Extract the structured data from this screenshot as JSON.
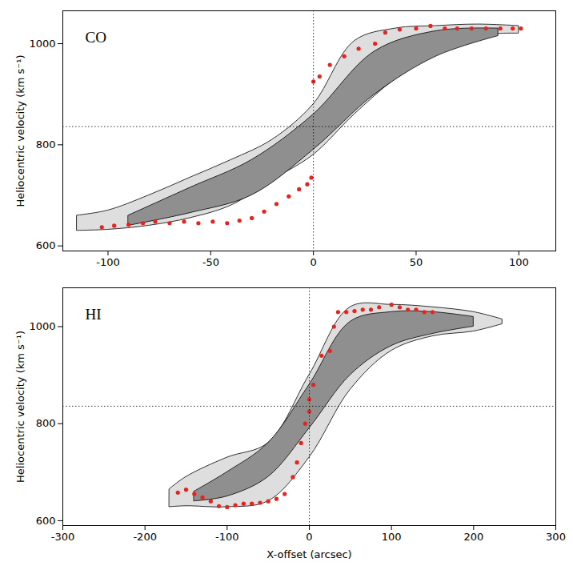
{
  "chart_data": [
    {
      "type": "scatter",
      "annotation": "CO",
      "ylabel": "Heliocentric velocity (km s⁻¹)",
      "xlim": [
        -122,
        118
      ],
      "xticks": [
        -100,
        -50,
        0,
        50,
        100
      ],
      "ylim": [
        590,
        1065
      ],
      "yticks": [
        600,
        800,
        1000
      ],
      "vlines": [
        0
      ],
      "hlines": [
        836
      ],
      "series": [
        {
          "type": "area",
          "color": "#dedede",
          "x": [
            -115,
            -100,
            -80,
            -60,
            -40,
            -20,
            0,
            20,
            40,
            60,
            80,
            100
          ],
          "low": [
            630,
            632,
            640,
            655,
            680,
            730,
            780,
            860,
            930,
            980,
            1015,
            1020
          ],
          "high": [
            660,
            670,
            700,
            735,
            770,
            810,
            880,
            1005,
            1030,
            1035,
            1038,
            1035
          ]
        },
        {
          "type": "area",
          "color": "#8f8f8f",
          "x": [
            -90,
            -60,
            -30,
            0,
            30,
            60,
            90
          ],
          "low": [
            640,
            665,
            700,
            790,
            900,
            975,
            1015
          ],
          "high": [
            660,
            715,
            770,
            860,
            985,
            1025,
            1030
          ]
        },
        {
          "type": "scatter",
          "color": "#e8231f",
          "marker": "circle",
          "x": [
            -103,
            -97,
            -90,
            -83,
            -77,
            -70,
            -63,
            -56,
            -49,
            -42,
            -36,
            -30,
            -24,
            -18,
            -12,
            -7,
            -3,
            -1,
            0,
            3,
            8,
            15,
            22,
            30,
            35,
            42,
            50,
            57,
            64,
            70,
            77,
            84,
            91,
            97,
            101
          ],
          "values": [
            637,
            640,
            642,
            645,
            648,
            645,
            648,
            645,
            648,
            645,
            650,
            655,
            668,
            683,
            698,
            712,
            722,
            735,
            925,
            935,
            958,
            975,
            990,
            1000,
            1022,
            1028,
            1030,
            1035,
            1030,
            1030,
            1030,
            1030,
            1030,
            1030,
            1030
          ]
        }
      ]
    },
    {
      "type": "scatter",
      "annotation": "HI",
      "xlabel": "X-offset (arcsec)",
      "ylabel": "Heliocentric velocity (km s⁻¹)",
      "xlim": [
        -300,
        300
      ],
      "xticks": [
        -300,
        -200,
        -100,
        0,
        100,
        200,
        300
      ],
      "ylim": [
        590,
        1080
      ],
      "yticks": [
        600,
        800,
        1000
      ],
      "vlines": [
        0
      ],
      "hlines": [
        836
      ],
      "series": [
        {
          "type": "area",
          "color": "#dedede",
          "x": [
            -170,
            -150,
            -100,
            -50,
            0,
            50,
            100,
            150,
            200,
            235
          ],
          "low": [
            628,
            630,
            628,
            640,
            730,
            870,
            950,
            980,
            990,
            1005
          ],
          "high": [
            665,
            690,
            730,
            760,
            900,
            1040,
            1045,
            1040,
            1030,
            1015
          ]
        },
        {
          "type": "area",
          "color": "#8f8f8f",
          "x": [
            -140,
            -100,
            -50,
            0,
            50,
            100,
            150,
            200
          ],
          "low": [
            640,
            650,
            690,
            790,
            900,
            960,
            985,
            1000
          ],
          "high": [
            660,
            700,
            760,
            880,
            1010,
            1030,
            1030,
            1020
          ]
        },
        {
          "type": "scatter",
          "color": "#e8231f",
          "marker": "circle",
          "x": [
            -160,
            -150,
            -140,
            -130,
            -120,
            -110,
            -100,
            -90,
            -80,
            -70,
            -60,
            -50,
            -40,
            -30,
            -20,
            -15,
            -10,
            -5,
            0,
            0,
            5,
            15,
            25,
            30,
            35,
            45,
            55,
            65,
            75,
            85,
            100,
            110,
            120,
            130,
            140,
            150
          ],
          "values": [
            658,
            664,
            655,
            648,
            640,
            630,
            628,
            632,
            635,
            635,
            637,
            640,
            645,
            655,
            690,
            720,
            760,
            800,
            825,
            850,
            880,
            940,
            950,
            1000,
            1030,
            1030,
            1032,
            1035,
            1035,
            1040,
            1045,
            1040,
            1035,
            1035,
            1030,
            1030
          ]
        }
      ]
    }
  ]
}
